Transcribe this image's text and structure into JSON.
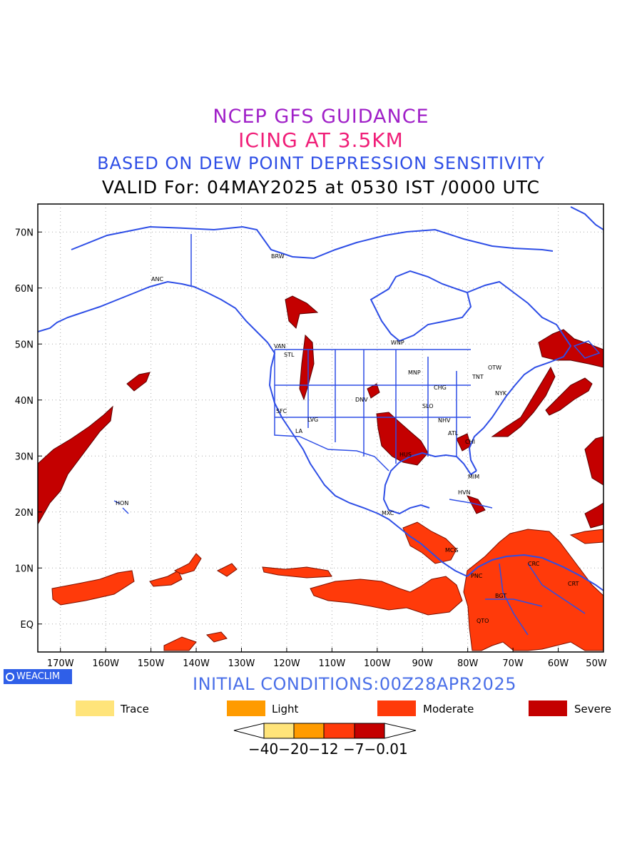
{
  "titles": {
    "line1": "NCEP GFS GUIDANCE",
    "line2": "ICING AT 3.5KM",
    "line3": "BASED ON DEW POINT DEPRESSION SENSITIVITY",
    "line4": "VALID For: 04MAY2025 at 0530 IST /0000 UTC"
  },
  "axes": {
    "lat_labels": [
      "70N",
      "60N",
      "50N",
      "40N",
      "30N",
      "20N",
      "10N",
      "EQ"
    ],
    "lon_labels": [
      "170W",
      "160W",
      "150W",
      "140W",
      "130W",
      "120W",
      "110W",
      "100W",
      "90W",
      "80W",
      "70W",
      "60W",
      "50W"
    ]
  },
  "cities": [
    "BRW",
    "ANC",
    "VAN",
    "STL",
    "WNP",
    "OTW",
    "TNT",
    "MNP",
    "CHG",
    "NYK",
    "DNV",
    "SFC",
    "SLO",
    "LVG",
    "NHV",
    "LA",
    "ATL",
    "CHI",
    "HUS",
    "MIM",
    "HVN",
    "HON",
    "MXC",
    "MCG",
    "PNC",
    "CRC",
    "BGT",
    "CRT",
    "QTO"
  ],
  "logo": "WEACLIM",
  "initial_conditions": "INITIAL CONDITIONS:00Z28APR2025",
  "legend": [
    {
      "label": "Trace",
      "color": "#ffe47a"
    },
    {
      "label": "Light",
      "color": "#ff9b00"
    },
    {
      "label": "Moderate",
      "color": "#ff3a0a"
    },
    {
      "label": "Severe",
      "color": "#c40000"
    }
  ],
  "colorbar": {
    "labels": "−40−20−12 −7−0.01",
    "colors": [
      "#ffe47a",
      "#ff9b00",
      "#ff3a0a",
      "#c40000"
    ]
  },
  "colors": {
    "coastline": "#2e4ee6",
    "grid": "#aaaaaa"
  }
}
